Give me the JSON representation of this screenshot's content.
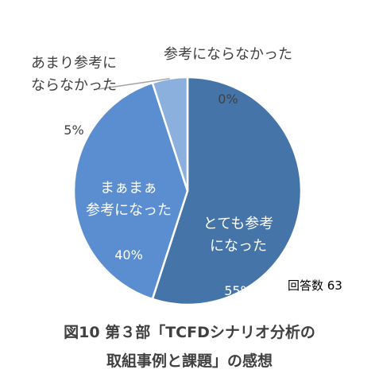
{
  "chart_data": {
    "type": "pie",
    "title": "図10 第３部「TCFDシナリオ分析の\n取組事例と課題」の感想",
    "annotation": "回答数 63",
    "slices": [
      {
        "label": "とても参考\nになった",
        "percent_label": "55%",
        "value": 55,
        "color": "#4575a8"
      },
      {
        "label": "まぁまぁ\n参考になった",
        "percent_label": "40%",
        "value": 40,
        "color": "#5a8ed0"
      },
      {
        "label": "あまり参考に\nならなかった",
        "percent_label": "5%",
        "value": 5,
        "color": "#8cb0dd"
      },
      {
        "label": "参考にならなかった",
        "percent_label": "0%",
        "value": 0,
        "color": "#b4c9e8"
      }
    ]
  }
}
